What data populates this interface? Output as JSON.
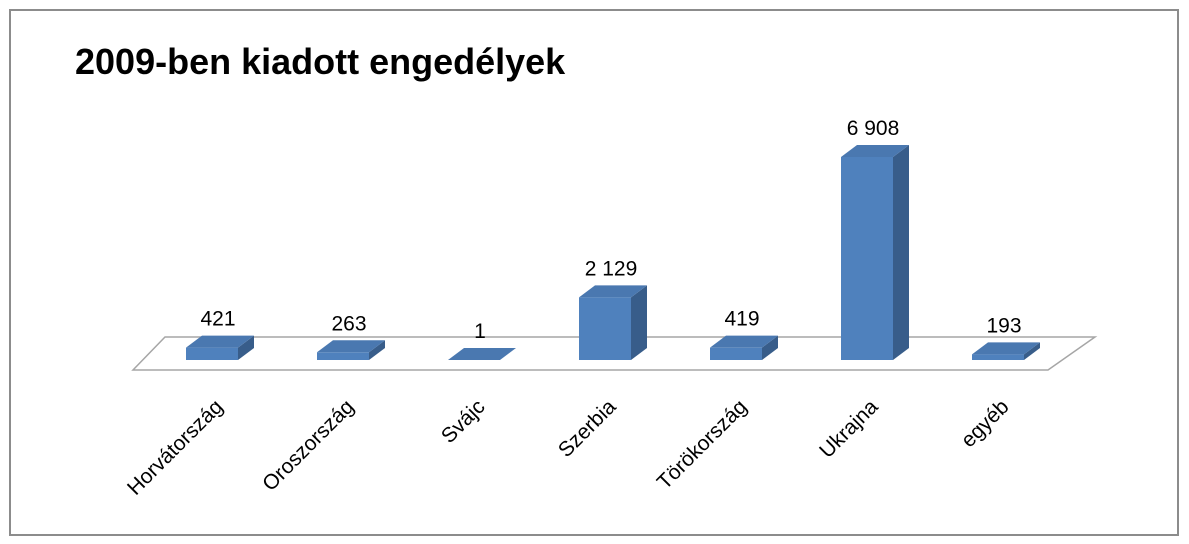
{
  "chart_data": {
    "type": "bar3d",
    "title": "2009-ben kiadott engedélyek",
    "categories": [
      "Horvátország",
      "Oroszország",
      "Svájc",
      "Szerbia",
      "Törökország",
      "Ukrajna",
      "egyéb"
    ],
    "values": [
      421,
      263,
      1,
      2129,
      419,
      6908,
      193
    ],
    "value_labels": [
      "421",
      "263",
      "1",
      "2 129",
      "419",
      "6 908",
      "193"
    ],
    "color": "#4f81bd"
  }
}
